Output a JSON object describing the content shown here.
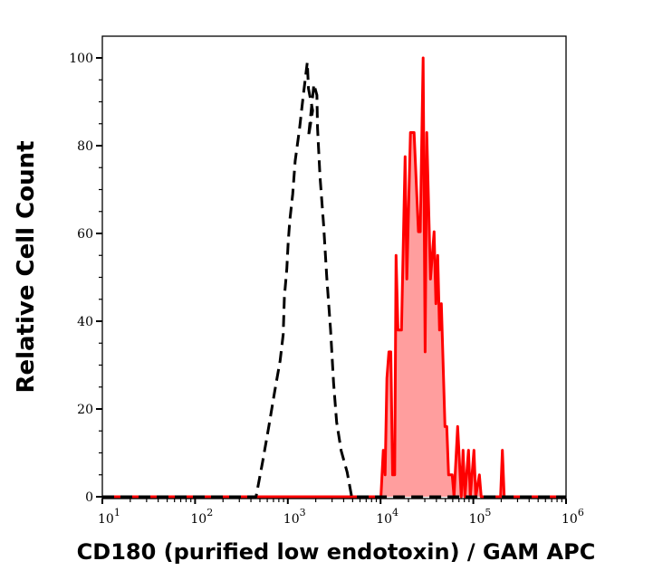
{
  "chart_data": {
    "type": "line",
    "title": "",
    "xlabel": "CD180 (purified low endotoxin) / GAM APC",
    "ylabel": "Relative Cell Count",
    "xscale": "log",
    "xlim": [
      10,
      1000000
    ],
    "ylim": [
      0,
      100
    ],
    "x_ticks": [
      {
        "base": "10",
        "exp": "1",
        "value": 10
      },
      {
        "base": "10",
        "exp": "2",
        "value": 100
      },
      {
        "base": "10",
        "exp": "3",
        "value": 1000
      },
      {
        "base": "10",
        "exp": "4",
        "value": 10000
      },
      {
        "base": "10",
        "exp": "5",
        "value": 100000
      },
      {
        "base": "10",
        "exp": "6",
        "value": 1000000
      }
    ],
    "y_ticks": [
      "0",
      "20",
      "40",
      "60",
      "80",
      "100"
    ],
    "grid": false,
    "legend": "none",
    "series": [
      {
        "style": "dashed",
        "color": "#000000",
        "filled": false,
        "x": [
          10,
          454,
          535,
          623,
          722,
          826,
          892,
          918,
          975,
          1010,
          1050,
          1130,
          1200,
          1340,
          1470,
          1620,
          1670,
          1850,
          1670,
          1910,
          2060,
          2090,
          2220,
          2430,
          2630,
          2890,
          3110,
          3360,
          3760,
          4360,
          4880,
          1000000
        ],
        "y": [
          0,
          0,
          8,
          16,
          24,
          31,
          37,
          45.5,
          52,
          58,
          63,
          69,
          76.5,
          84,
          91.5,
          99,
          93,
          88,
          82,
          94,
          91.5,
          84,
          73,
          62,
          50,
          38,
          26,
          17,
          10.5,
          5.6,
          0,
          0
        ]
      },
      {
        "style": "solid",
        "color": "#ff0000",
        "fill_color": "#ff9e9e",
        "filled": true,
        "x": [
          10,
          10100,
          10700,
          11200,
          11700,
          12300,
          12900,
          13500,
          14200,
          14700,
          15400,
          16800,
          18400,
          19200,
          21000,
          23000,
          25600,
          26800,
          28800,
          30200,
          31500,
          34500,
          37800,
          39500,
          41300,
          43200,
          45200,
          49500,
          51700,
          54100,
          59200,
          61900,
          67700,
          74100,
          77600,
          81100,
          88800,
          92900,
          101600,
          106200,
          116200,
          121600,
          196600,
          205800,
          215200,
          1000000
        ],
        "y": [
          0,
          0,
          10.6,
          5,
          27,
          33,
          33,
          5,
          5,
          55,
          38,
          38,
          77.5,
          49.6,
          83,
          83,
          60.4,
          60.4,
          100,
          33,
          83,
          49.6,
          60.4,
          44,
          55,
          38,
          44,
          16,
          16,
          5,
          5,
          0,
          16,
          0,
          10.6,
          0,
          10.6,
          0,
          10.6,
          0,
          5,
          0,
          0,
          10.6,
          0,
          0
        ]
      }
    ]
  }
}
